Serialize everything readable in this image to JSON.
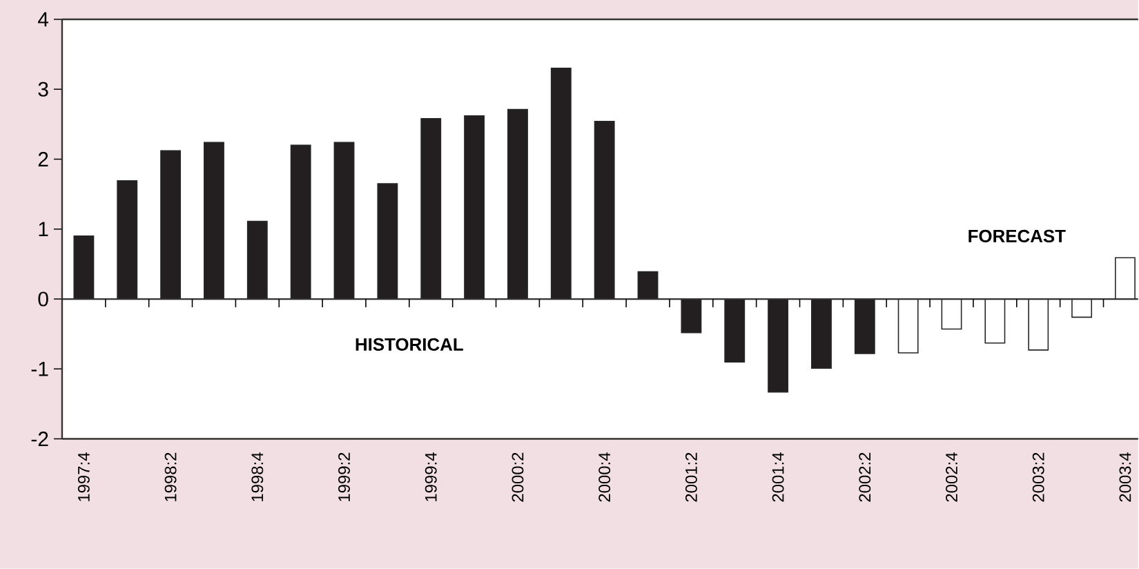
{
  "chart_data": {
    "type": "bar",
    "categories": [
      "1997:4",
      null,
      "1998:2",
      null,
      "1998:4",
      null,
      "1999:2",
      null,
      "1999:4",
      null,
      "2000:2",
      null,
      "2000:4",
      null,
      "2001:2",
      null,
      "2001:4",
      null,
      "2002:2",
      null,
      "2002:4",
      null,
      "2003:2",
      null,
      "2003:4"
    ],
    "series": [
      {
        "color": "#231f20",
        "values": [
          0.9,
          1.69,
          2.12,
          2.24,
          1.11,
          2.2,
          2.24,
          1.65,
          2.58,
          2.62,
          2.71,
          3.3,
          2.54,
          0.39,
          -0.48,
          -0.9,
          -1.33,
          -0.99,
          -0.78,
          null,
          null,
          null,
          null,
          null,
          null
        ]
      },
      {
        "color": "#ffffff",
        "values": [
          null,
          null,
          null,
          null,
          null,
          null,
          null,
          null,
          null,
          null,
          null,
          null,
          null,
          null,
          null,
          null,
          null,
          null,
          null,
          -0.77,
          -0.43,
          -0.63,
          -0.73,
          -0.26,
          0.59
        ]
      }
    ],
    "ylim": [
      -2,
      4
    ],
    "yticks": [
      -2,
      -1,
      0,
      1,
      2,
      3,
      4
    ],
    "annotations": [
      "HISTORICAL",
      "FORECAST"
    ]
  }
}
